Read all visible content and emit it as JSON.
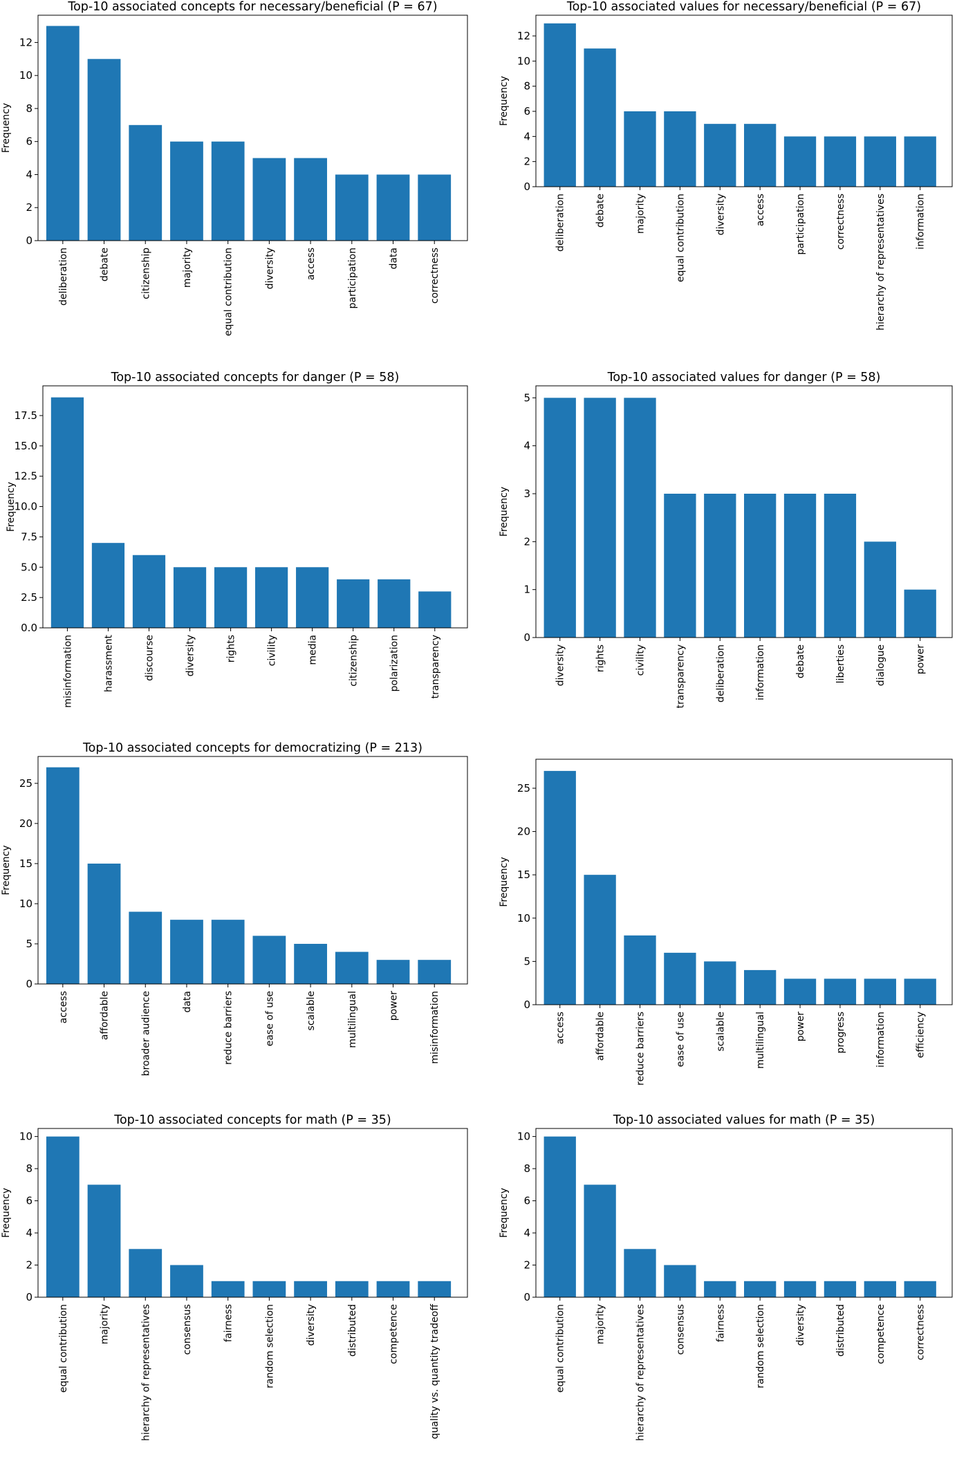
{
  "bar_color": "#1f77b4",
  "chart_data": [
    {
      "type": "bar",
      "title": "Top-10 associated concepts for necessary/beneficial (P = 67)",
      "xlabel": "",
      "ylabel": "Frequency",
      "categories": [
        "deliberation",
        "debate",
        "citizenship",
        "majority",
        "equal contribution",
        "diversity",
        "access",
        "participation",
        "data",
        "correctness"
      ],
      "values": [
        13,
        11,
        7,
        6,
        6,
        5,
        5,
        4,
        4,
        4
      ],
      "ylim": [
        0,
        13.65
      ],
      "yticks": [
        0,
        2,
        4,
        6,
        8,
        10,
        12
      ],
      "ytick_labels": [
        "0",
        "2",
        "4",
        "6",
        "8",
        "10",
        "12"
      ]
    },
    {
      "type": "bar",
      "title": "Top-10 associated values for necessary/beneficial (P = 67)",
      "xlabel": "",
      "ylabel": "Frequency",
      "categories": [
        "deliberation",
        "debate",
        "majority",
        "equal contribution",
        "diversity",
        "access",
        "participation",
        "correctness",
        "hierarchy of representatives",
        "information"
      ],
      "values": [
        13,
        11,
        6,
        6,
        5,
        5,
        4,
        4,
        4,
        4
      ],
      "ylim": [
        0,
        13.65
      ],
      "yticks": [
        0,
        2,
        4,
        6,
        8,
        10,
        12
      ],
      "ytick_labels": [
        "0",
        "2",
        "4",
        "6",
        "8",
        "10",
        "12"
      ]
    },
    {
      "type": "bar",
      "title": "Top-10 associated concepts for danger (P = 58)",
      "xlabel": "",
      "ylabel": "Frequency",
      "categories": [
        "misinformation",
        "harassment",
        "discourse",
        "diversity",
        "rights",
        "civility",
        "media",
        "citizenship",
        "polarization",
        "transparency"
      ],
      "values": [
        19,
        7,
        6,
        5,
        5,
        5,
        5,
        4,
        4,
        3
      ],
      "ylim": [
        0,
        19.95
      ],
      "yticks": [
        0,
        2.5,
        5,
        7.5,
        10,
        12.5,
        15,
        17.5
      ],
      "ytick_labels": [
        "0.0",
        "2.5",
        "5.0",
        "7.5",
        "10.0",
        "12.5",
        "15.0",
        "17.5"
      ]
    },
    {
      "type": "bar",
      "title": "Top-10 associated values for danger (P = 58)",
      "xlabel": "",
      "ylabel": "Frequency",
      "categories": [
        "diversity",
        "rights",
        "civility",
        "transparency",
        "deliberation",
        "information",
        "debate",
        "liberties",
        "dialogue",
        "power"
      ],
      "values": [
        5,
        5,
        5,
        3,
        3,
        3,
        3,
        3,
        2,
        1
      ],
      "ylim": [
        0,
        5.25
      ],
      "yticks": [
        0,
        1,
        2,
        3,
        4,
        5
      ],
      "ytick_labels": [
        "0",
        "1",
        "2",
        "3",
        "4",
        "5"
      ]
    },
    {
      "type": "bar",
      "title": "Top-10 associated concepts for democratizing (P = 213)",
      "xlabel": "",
      "ylabel": "Frequency",
      "categories": [
        "access",
        "affordable",
        "broader audience",
        "data",
        "reduce barriers",
        "ease of use",
        "scalable",
        "multilingual",
        "power",
        "misinformation"
      ],
      "values": [
        27,
        15,
        9,
        8,
        8,
        6,
        5,
        4,
        3,
        3
      ],
      "ylim": [
        0,
        28.35
      ],
      "yticks": [
        0,
        5,
        10,
        15,
        20,
        25
      ],
      "ytick_labels": [
        "0",
        "5",
        "10",
        "15",
        "20",
        "25"
      ]
    },
    {
      "type": "bar",
      "title": "",
      "xlabel": "",
      "ylabel": "Frequency",
      "categories": [
        "access",
        "affordable",
        "reduce barriers",
        "ease of use",
        "scalable",
        "multilingual",
        "power",
        "progress",
        "information",
        "efficiency"
      ],
      "values": [
        27,
        15,
        8,
        6,
        5,
        4,
        3,
        3,
        3,
        3
      ],
      "ylim": [
        0,
        28.35
      ],
      "yticks": [
        0,
        5,
        10,
        15,
        20,
        25
      ],
      "ytick_labels": [
        "0",
        "5",
        "10",
        "15",
        "20",
        "25"
      ]
    },
    {
      "type": "bar",
      "title": "Top-10 associated concepts for math (P = 35)",
      "xlabel": "",
      "ylabel": "Frequency",
      "categories": [
        "equal contribution",
        "majority",
        "hierarchy of representatives",
        "consensus",
        "fairness",
        "random selection",
        "diversity",
        "distributed",
        "competence",
        "quality vs. quantity tradeoff"
      ],
      "values": [
        10,
        7,
        3,
        2,
        1,
        1,
        1,
        1,
        1,
        1
      ],
      "ylim": [
        0,
        10.5
      ],
      "yticks": [
        0,
        2,
        4,
        6,
        8,
        10
      ],
      "ytick_labels": [
        "0",
        "2",
        "4",
        "6",
        "8",
        "10"
      ]
    },
    {
      "type": "bar",
      "title": "Top-10 associated values for math (P = 35)",
      "xlabel": "",
      "ylabel": "Frequency",
      "categories": [
        "equal contribution",
        "majority",
        "hierarchy of representatives",
        "consensus",
        "fairness",
        "random selection",
        "diversity",
        "distributed",
        "competence",
        "correctness"
      ],
      "values": [
        10,
        7,
        3,
        2,
        1,
        1,
        1,
        1,
        1,
        1
      ],
      "ylim": [
        0,
        10.5
      ],
      "yticks": [
        0,
        2,
        4,
        6,
        8,
        10
      ],
      "ytick_labels": [
        "0",
        "2",
        "4",
        "6",
        "8",
        "10"
      ]
    }
  ]
}
